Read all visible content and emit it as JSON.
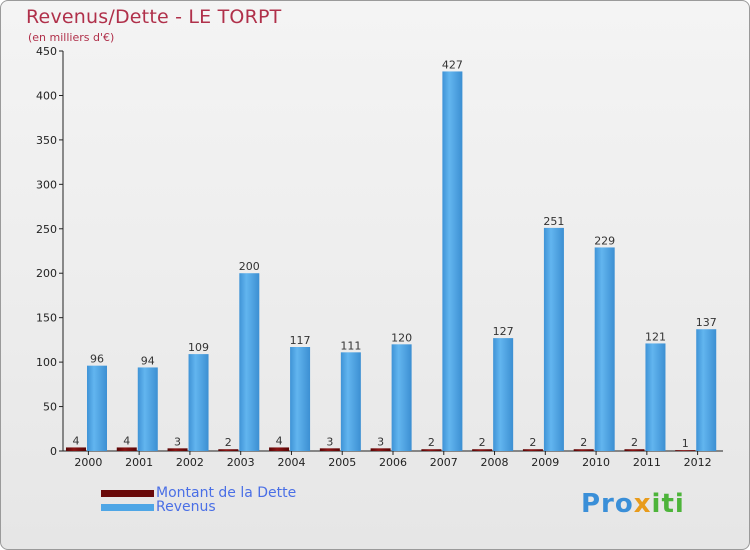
{
  "header": {
    "title": "Revenus/Dette - LE TORPT",
    "subtitle": "(en milliers d'€)"
  },
  "chart_data": {
    "type": "bar",
    "categories": [
      "2000",
      "2001",
      "2002",
      "2003",
      "2004",
      "2005",
      "2006",
      "2007",
      "2008",
      "2009",
      "2010",
      "2011",
      "2012"
    ],
    "series": [
      {
        "name": "Montant de la Dette",
        "color": "#7a0a0a",
        "values": [
          4,
          4,
          3,
          2,
          4,
          3,
          3,
          2,
          2,
          2,
          2,
          2,
          1
        ]
      },
      {
        "name": "Revenus",
        "color": "#4ea6e6",
        "values": [
          96,
          94,
          109,
          200,
          117,
          111,
          120,
          427,
          127,
          251,
          229,
          121,
          137
        ]
      }
    ],
    "ylim": [
      0,
      450
    ],
    "yticks": [
      0,
      50,
      100,
      150,
      200,
      250,
      300,
      350,
      400,
      450
    ],
    "grid": false,
    "legend_position": "bottom-left"
  },
  "legend": {
    "items": [
      {
        "label": "Montant de la Dette",
        "color": "#6a0a0a"
      },
      {
        "label": "Revenus",
        "color": "#4ea6e6"
      }
    ]
  },
  "logo": {
    "part1": "Pro",
    "part2": "x",
    "part3": "iti"
  }
}
